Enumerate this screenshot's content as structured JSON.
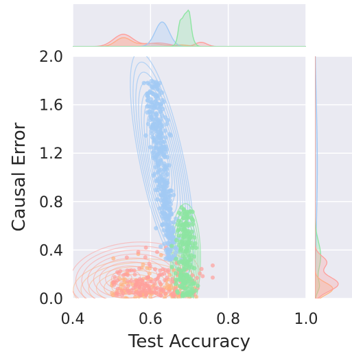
{
  "chart_data": {
    "type": "scatter",
    "subtype": "jointplot with marginal KDE and density contours",
    "xlabel": "Test Accuracy",
    "ylabel": "Causal Error",
    "xlim": [
      0.4,
      1.0
    ],
    "ylim": [
      0.0,
      2.0
    ],
    "xticks": [
      "0.4",
      "0.6",
      "0.8",
      "1.0"
    ],
    "yticks": [
      "0.0",
      "0.4",
      "0.8",
      "1.2",
      "1.6",
      "2.0"
    ],
    "grid": true,
    "legend": "none",
    "background": "#eaeaf2",
    "series": [
      {
        "color": "#a1c9f4",
        "x_range": [
          0.58,
          0.68
        ],
        "y_range": [
          0.3,
          1.85
        ],
        "peak_x": 0.63,
        "peak_y": 1.2,
        "correlation": "negative"
      },
      {
        "color": "#8de5a1",
        "x_range": [
          0.66,
          0.74
        ],
        "y_range": [
          0.0,
          0.8
        ],
        "peak_x": 0.69,
        "peak_y": 0.25
      },
      {
        "color": "#ff9f9b",
        "x_range": [
          0.47,
          0.76
        ],
        "y_range": [
          0.0,
          0.45
        ],
        "peak_x": 0.53,
        "peak_y": 0.15
      },
      {
        "color": "#ffb482",
        "x_range": [
          0.47,
          0.72
        ],
        "y_range": [
          0.0,
          0.4
        ],
        "peak_x": 0.53,
        "peak_y": 0.1
      }
    ]
  }
}
